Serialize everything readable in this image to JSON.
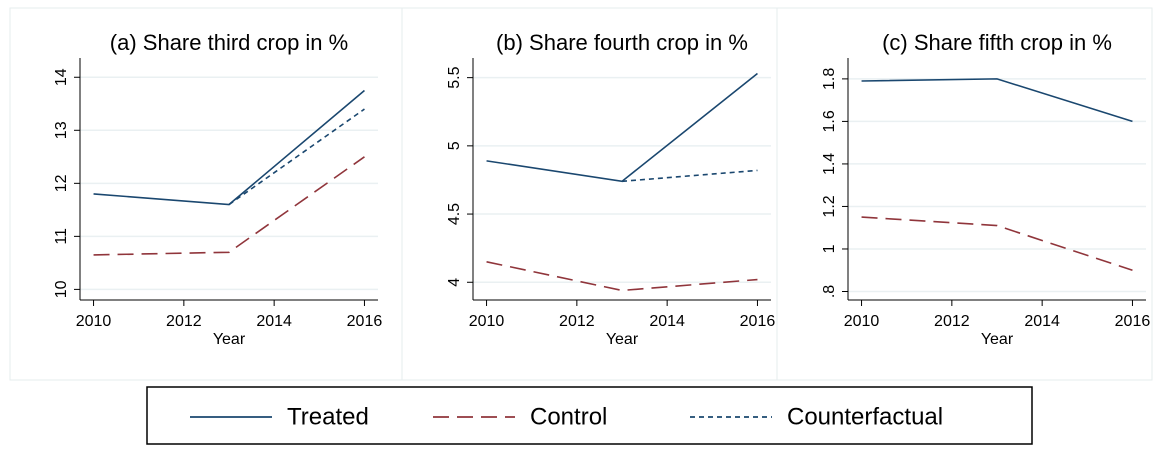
{
  "chart_data": [
    {
      "type": "line",
      "title": "(a) Share third crop in %",
      "x_label": "Year",
      "x": [
        2010,
        2013,
        2016
      ],
      "xlim": [
        2009.7,
        2016.3
      ],
      "xticks": [
        2010,
        2012,
        2014,
        2016
      ],
      "ylim": [
        9.8,
        14.25
      ],
      "yticks": [
        10,
        11,
        12,
        13,
        14
      ],
      "grid": true,
      "series": [
        {
          "name": "Treated",
          "color": "#1a476f",
          "dash": "solid",
          "values": [
            11.8,
            11.6,
            13.75
          ]
        },
        {
          "name": "Control",
          "color": "#90353b",
          "dash": "long",
          "values": [
            10.65,
            10.7,
            12.5
          ]
        },
        {
          "name": "Counterfactual",
          "color": "#1a476f",
          "dash": "short",
          "values": [
            null,
            11.6,
            13.4
          ]
        }
      ]
    },
    {
      "type": "line",
      "title": "(b) Share fourth crop in %",
      "x_label": "Year",
      "x": [
        2010,
        2013,
        2016
      ],
      "xlim": [
        2009.7,
        2016.3
      ],
      "xticks": [
        2010,
        2012,
        2014,
        2016
      ],
      "ylim": [
        3.87,
        5.6
      ],
      "yticks": [
        4,
        4.5,
        5,
        5.5
      ],
      "grid": true,
      "series": [
        {
          "name": "Treated",
          "color": "#1a476f",
          "dash": "solid",
          "values": [
            4.89,
            4.74,
            5.53
          ]
        },
        {
          "name": "Control",
          "color": "#90353b",
          "dash": "long",
          "values": [
            4.15,
            3.94,
            4.02
          ]
        },
        {
          "name": "Counterfactual",
          "color": "#1a476f",
          "dash": "short",
          "values": [
            null,
            4.74,
            4.82
          ]
        }
      ]
    },
    {
      "type": "line",
      "title": "(c) Share fifth crop in %",
      "x_label": "Year",
      "x": [
        2010,
        2013,
        2016
      ],
      "xlim": [
        2009.7,
        2016.3
      ],
      "xticks": [
        2010,
        2012,
        2014,
        2016
      ],
      "ylim": [
        0.76,
        1.87
      ],
      "yticks": [
        {
          "value": 0.8,
          "label": ".8"
        },
        1,
        1.2,
        1.4,
        1.6,
        1.8
      ],
      "grid": true,
      "series": [
        {
          "name": "Treated",
          "color": "#1a476f",
          "dash": "solid",
          "values": [
            1.79,
            1.8,
            1.6
          ]
        },
        {
          "name": "Control",
          "color": "#90353b",
          "dash": "long",
          "values": [
            1.15,
            1.11,
            0.9
          ]
        }
      ]
    }
  ]
}
